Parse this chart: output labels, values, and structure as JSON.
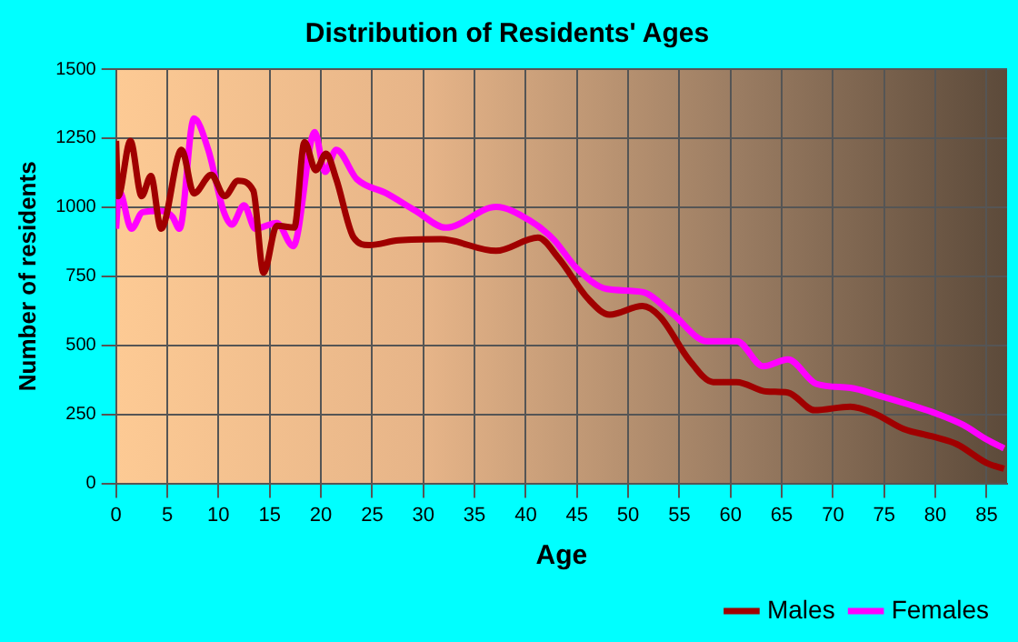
{
  "chart_data": {
    "type": "line",
    "title": "Distribution of Residents' Ages",
    "xlabel": "Age",
    "ylabel": "Number of residents",
    "xlim": [
      0,
      87
    ],
    "xticks": [
      0,
      5,
      10,
      15,
      20,
      25,
      30,
      35,
      40,
      45,
      50,
      55,
      60,
      65,
      70,
      75,
      80,
      85
    ],
    "ylim": [
      0,
      1500
    ],
    "yticks": [
      0,
      250,
      500,
      750,
      1000,
      1250,
      1500
    ],
    "grid": true,
    "legend": "bottom right",
    "marker": "none",
    "line_style": "solid",
    "series": [
      {
        "name": "Males",
        "color": "#a00000",
        "x": [
          0,
          0.2,
          1.4,
          2.5,
          3.4,
          4.4,
          6.4,
          7.6,
          9.3,
          10.6,
          11.9,
          13.4,
          14.4,
          15.7,
          17.4,
          18.4,
          19.5,
          20.5,
          21.5,
          23.2,
          24.7,
          27.6,
          31.7,
          37.1,
          41.2,
          43.2,
          46.1,
          48.2,
          51.4,
          53.1,
          56,
          58.3,
          60.6,
          63.5,
          65.6,
          68.2,
          71.7,
          74,
          76.9,
          79.7,
          82.1,
          85,
          86.7
        ],
        "values": [
          1240,
          1040,
          1240,
          1040,
          1113,
          922,
          1208,
          1050,
          1117,
          1040,
          1096,
          1060,
          763,
          933,
          926,
          1236,
          1134,
          1194,
          1102,
          890,
          863,
          880,
          884,
          842,
          890,
          816,
          668,
          611,
          642,
          604,
          445,
          367,
          367,
          333,
          329,
          265,
          278,
          254,
          197,
          170,
          142,
          74,
          53
        ]
      },
      {
        "name": "Females",
        "color": "#ff00ff",
        "x": [
          0,
          0.3,
          1.5,
          2.6,
          4.4,
          5.5,
          6.2,
          7.6,
          9,
          10.5,
          11.3,
          12.5,
          13.6,
          15.7,
          17.3,
          19.4,
          20.4,
          21.5,
          23.5,
          26.4,
          29.3,
          32.2,
          37.1,
          40.3,
          42.7,
          45,
          47.9,
          51.4,
          54.3,
          57.7,
          60.6,
          63.2,
          65.6,
          68.4,
          71.7,
          74.5,
          77.4,
          80.3,
          82.7,
          85,
          86.7
        ],
        "values": [
          922,
          1060,
          922,
          982,
          986,
          965,
          922,
          1321,
          1208,
          986,
          937,
          1007,
          922,
          943,
          859,
          1272,
          1128,
          1208,
          1102,
          1050,
          986,
          926,
          1001,
          954,
          884,
          778,
          704,
          693,
          615,
          515,
          515,
          424,
          449,
          360,
          346,
          318,
          286,
          250,
          212,
          159,
          127
        ]
      }
    ]
  }
}
